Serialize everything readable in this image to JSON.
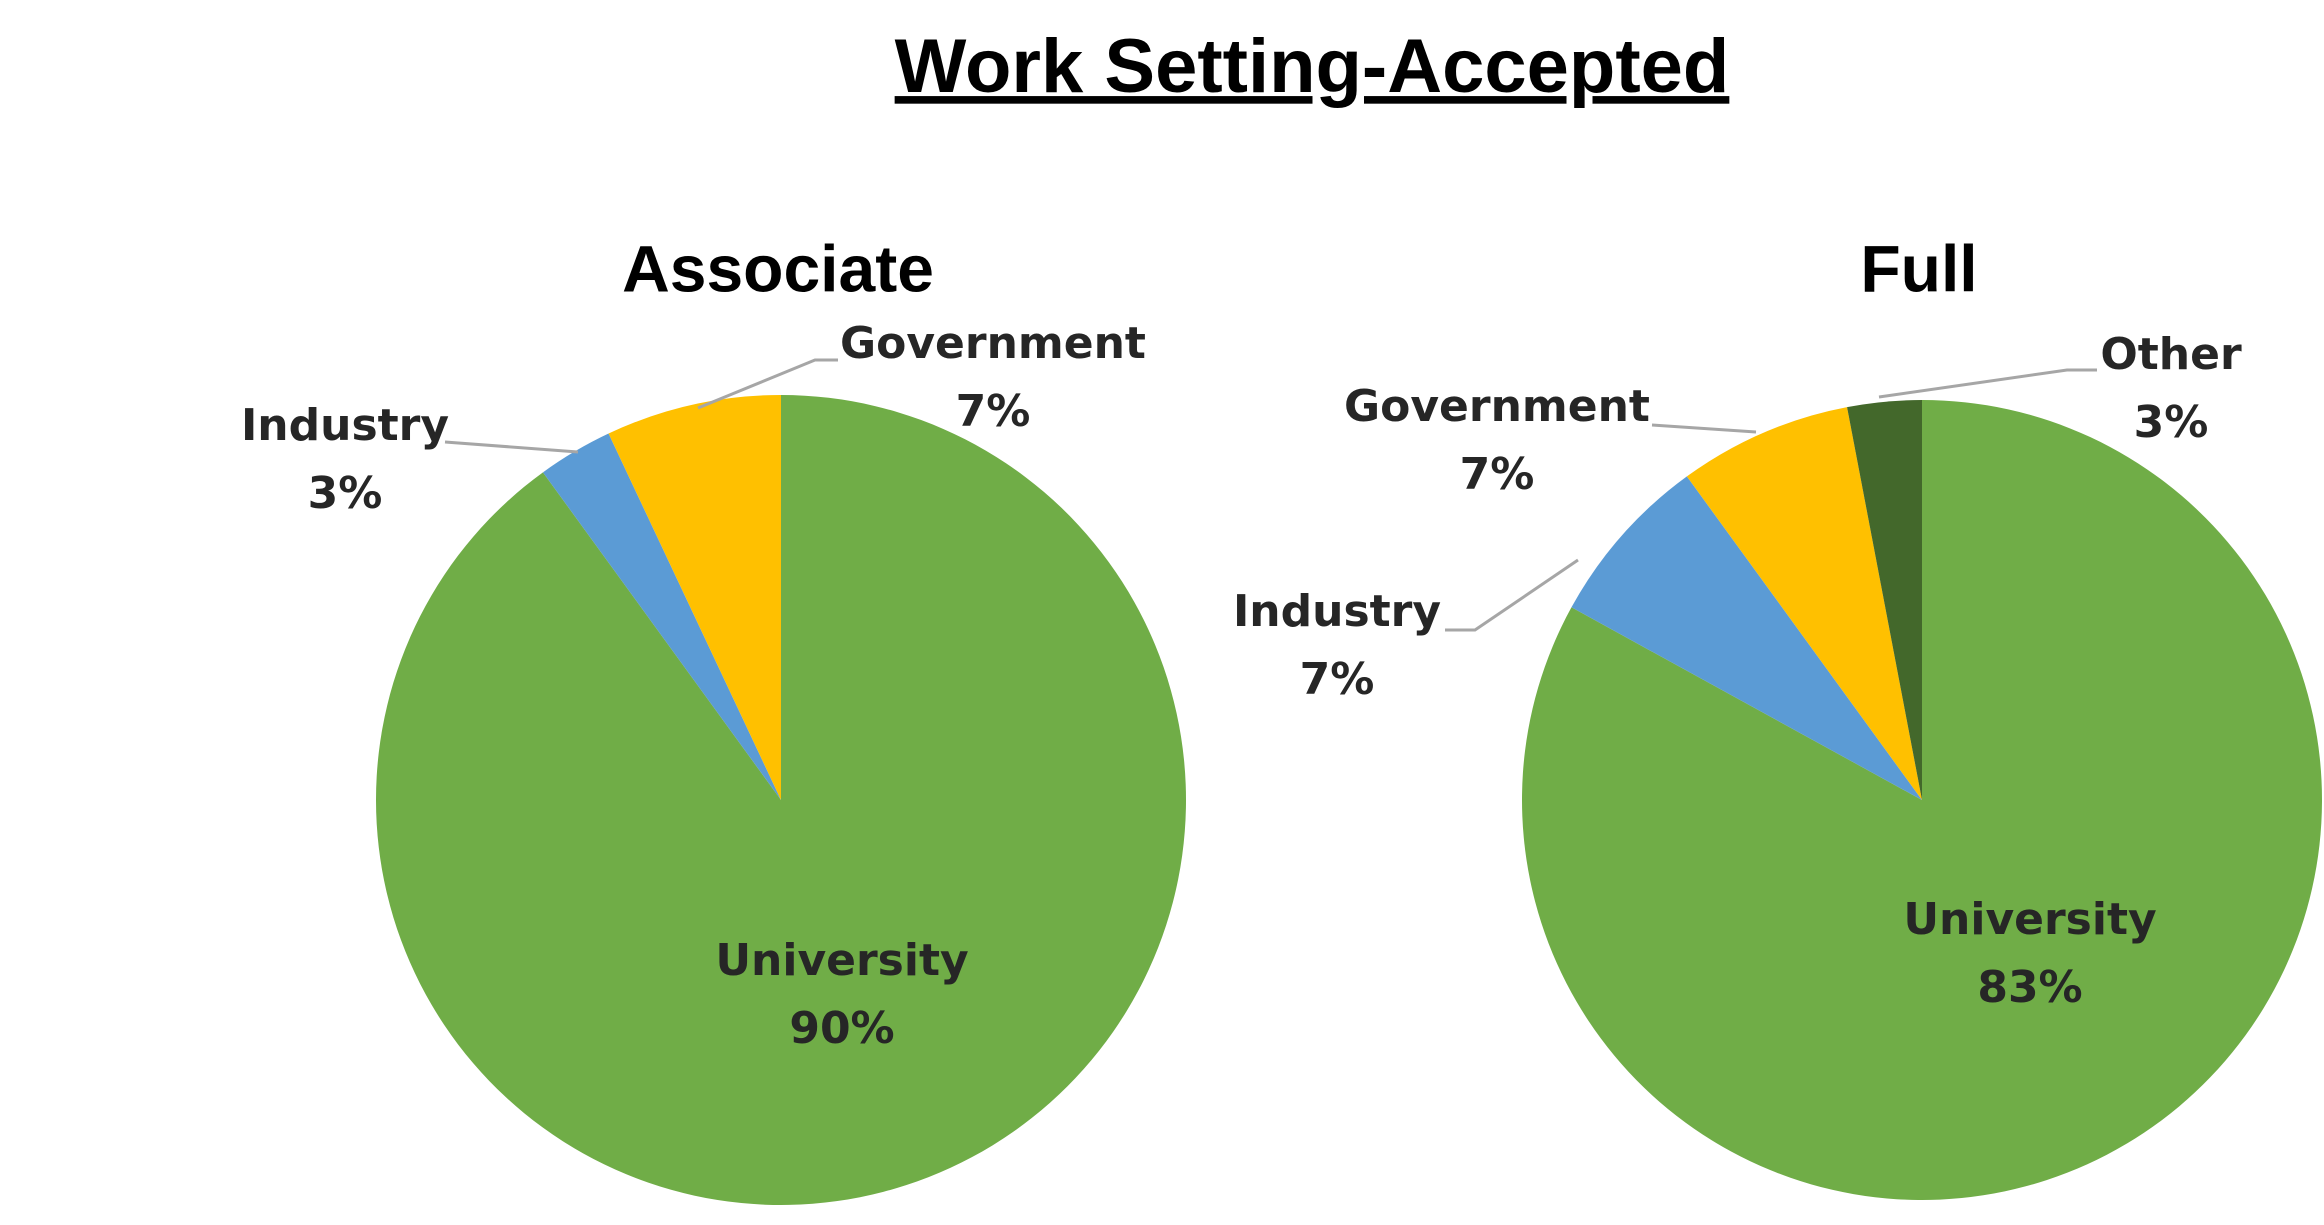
{
  "title": "Work Setting-Accepted",
  "chart_data": [
    {
      "type": "pie",
      "title": "Associate",
      "categories": [
        "University",
        "Industry",
        "Government"
      ],
      "values": [
        90,
        3,
        7
      ],
      "value_labels": [
        "90%",
        "3%",
        "7%"
      ],
      "colors": [
        "#70ad47",
        "#5b9bd5",
        "#ffc000"
      ]
    },
    {
      "type": "pie",
      "title": "Full",
      "categories": [
        "University",
        "Industry",
        "Government",
        "Other"
      ],
      "values": [
        83,
        7,
        7,
        3
      ],
      "value_labels": [
        "83%",
        "7%",
        "7%",
        "3%"
      ],
      "colors": [
        "#70ad47",
        "#5b9bd5",
        "#ffc000",
        "#43682b"
      ]
    }
  ]
}
